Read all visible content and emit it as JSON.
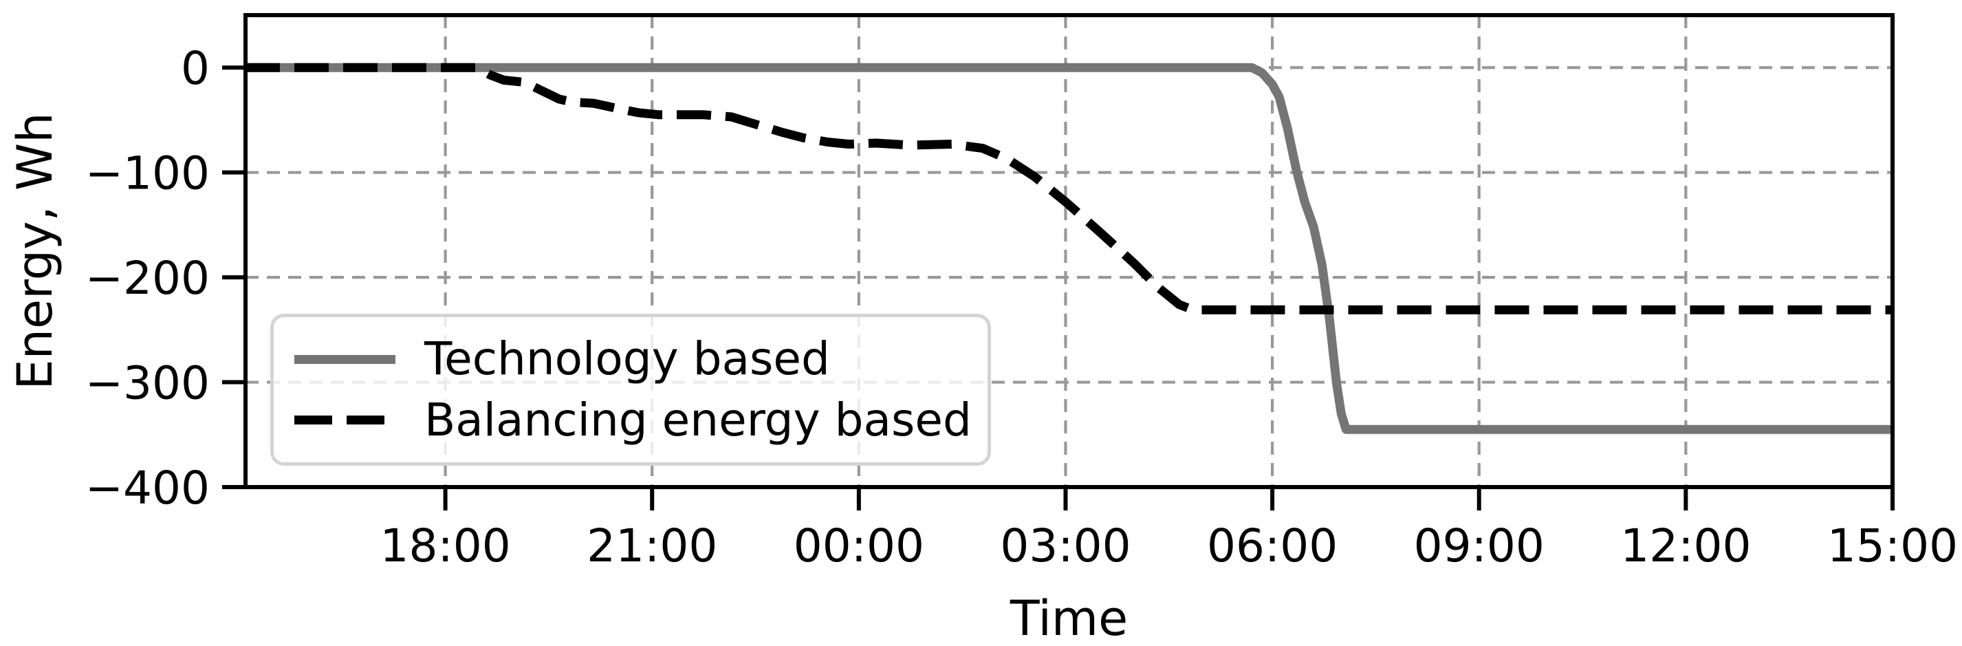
{
  "chart_data": {
    "type": "line",
    "title": "",
    "xlabel": "Time",
    "ylabel": "Energy, Wh",
    "grid": true,
    "grid_color": "#999999",
    "spine_color": "#000000",
    "background_color": "#ffffff",
    "legend_position": "lower left",
    "x_axis": {
      "unit": "time of day, 3-hour ticks",
      "start_hour": 15.1,
      "end_hour": 39.0,
      "tick_hours": [
        18,
        21,
        24,
        27,
        30,
        33,
        36,
        39
      ],
      "tick_labels": [
        "18:00",
        "21:00",
        "00:00",
        "03:00",
        "06:00",
        "09:00",
        "12:00",
        "15:00"
      ]
    },
    "y_axis": {
      "min": -400,
      "max": 50,
      "tick_values": [
        0,
        -100,
        -200,
        -300,
        -400
      ],
      "tick_labels": [
        "0",
        "−100",
        "−200",
        "−300",
        "−400"
      ],
      "grid_values": [
        0,
        -100,
        -200,
        -300
      ]
    },
    "series": [
      {
        "name": "Technology based",
        "style": "solid",
        "color": "#757575",
        "final_value": -345,
        "points": [
          [
            15.1,
            0
          ],
          [
            29.7,
            0
          ],
          [
            29.85,
            -5
          ],
          [
            30.0,
            -16
          ],
          [
            30.1,
            -28
          ],
          [
            30.22,
            -58
          ],
          [
            30.35,
            -98
          ],
          [
            30.47,
            -128
          ],
          [
            30.6,
            -152
          ],
          [
            30.72,
            -188
          ],
          [
            30.83,
            -240
          ],
          [
            30.93,
            -300
          ],
          [
            31.0,
            -330
          ],
          [
            31.07,
            -345
          ],
          [
            39.0,
            -345
          ]
        ]
      },
      {
        "name": "Balancing energy based",
        "style": "dashed",
        "color": "#000000",
        "final_value": -231,
        "points": [
          [
            15.1,
            0
          ],
          [
            18.45,
            0
          ],
          [
            18.65,
            -7
          ],
          [
            18.85,
            -12
          ],
          [
            19.15,
            -14
          ],
          [
            19.4,
            -22
          ],
          [
            19.65,
            -30
          ],
          [
            19.85,
            -33
          ],
          [
            20.15,
            -34
          ],
          [
            20.5,
            -39
          ],
          [
            20.8,
            -43
          ],
          [
            21.1,
            -45
          ],
          [
            21.75,
            -45
          ],
          [
            22.15,
            -47
          ],
          [
            22.55,
            -55
          ],
          [
            22.9,
            -62
          ],
          [
            23.2,
            -67
          ],
          [
            23.55,
            -71
          ],
          [
            23.85,
            -73
          ],
          [
            24.25,
            -72
          ],
          [
            24.75,
            -74
          ],
          [
            25.35,
            -73
          ],
          [
            25.8,
            -77
          ],
          [
            26.15,
            -87
          ],
          [
            26.55,
            -104
          ],
          [
            27.0,
            -128
          ],
          [
            27.5,
            -157
          ],
          [
            28.0,
            -187
          ],
          [
            28.35,
            -210
          ],
          [
            28.65,
            -226
          ],
          [
            28.85,
            -231
          ],
          [
            39.0,
            -231
          ]
        ]
      }
    ]
  }
}
